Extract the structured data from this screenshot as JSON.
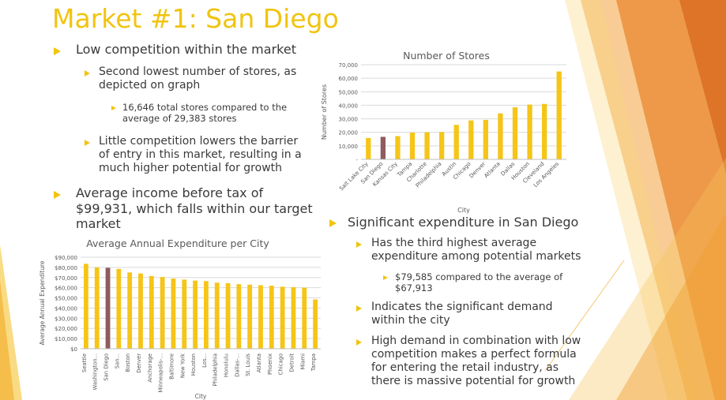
{
  "slide": {
    "title": "Market #1: San Diego",
    "left_bullets": {
      "b1": "Low competition within the market",
      "b1_1": "Second lowest number of stores, as depicted on graph",
      "b1_1_1": "16,646 total stores compared to the average of 29,383 stores",
      "b1_2": "Little competition lowers the barrier of entry in this market, resulting in a much higher potential for growth",
      "b2": "Average income before tax of $99,931, which falls within our target market"
    },
    "right_bullets": {
      "b3": "Significant expenditure in San Diego",
      "b3_1": "Has the third highest average expenditure among potential markets",
      "b3_1_1": "$79,585 compared to the average of $67,913",
      "b3_2": "Indicates the significant demand within the city",
      "b3_3": "High demand in combination with low competition makes a perfect formula for entering the retail industry, as there is massive potential for growth"
    },
    "colors": {
      "accent": "#f1c40f",
      "bar": "#f5c518",
      "highlight_bar": "#8e5b5e",
      "text": "#404040"
    }
  },
  "chart_data": [
    {
      "type": "bar",
      "title": "Number of Stores",
      "xlabel": "City",
      "ylabel": "Number of Stores",
      "ylim": [
        0,
        70000
      ],
      "yticks": [
        "-",
        "10,000",
        "20,000",
        "30,000",
        "40,000",
        "50,000",
        "60,000",
        "70,000"
      ],
      "categories": [
        "Salt Lake City",
        "San Diego",
        "Kansas City",
        "Tampa",
        "Charlotte",
        "Philadelphia",
        "Austin",
        "Chicago",
        "Denver",
        "Atlanta",
        "Dallas",
        "Houston",
        "Cleveland",
        "Los Angeles"
      ],
      "values": [
        15800,
        16646,
        17200,
        19800,
        20000,
        20200,
        25500,
        28800,
        29200,
        34000,
        38500,
        40500,
        41000,
        65000
      ],
      "highlight": "San Diego",
      "grid": true
    },
    {
      "type": "bar",
      "title": "Average Annual Expenditure per City",
      "xlabel": "City",
      "ylabel": "Average Annual Expenditure",
      "ylim": [
        0,
        90000
      ],
      "yticks": [
        "$0",
        "$10,000",
        "$20,000",
        "$30,000",
        "$40,000",
        "$50,000",
        "$60,000",
        "$70,000",
        "$80,000",
        "$90,000"
      ],
      "categories": [
        "Seattle",
        "Washington...",
        "San Diego",
        "San...",
        "Boston",
        "Denver",
        "Anchorage",
        "Minneapolis-...",
        "Baltimore",
        "New York",
        "Houston",
        "Los...",
        "Philadelphia",
        "Honolulu",
        "Dallas-...",
        "St. Louis",
        "Atlanta",
        "Phoenix",
        "Chicago",
        "Detroit",
        "Miami",
        "Tampa"
      ],
      "values": [
        83500,
        80000,
        79585,
        78500,
        75000,
        74000,
        71500,
        70500,
        69000,
        68000,
        67000,
        66500,
        65000,
        64500,
        63500,
        63000,
        62500,
        62000,
        61000,
        60500,
        60000,
        48500
      ],
      "highlight": "San Diego",
      "grid": true
    }
  ]
}
